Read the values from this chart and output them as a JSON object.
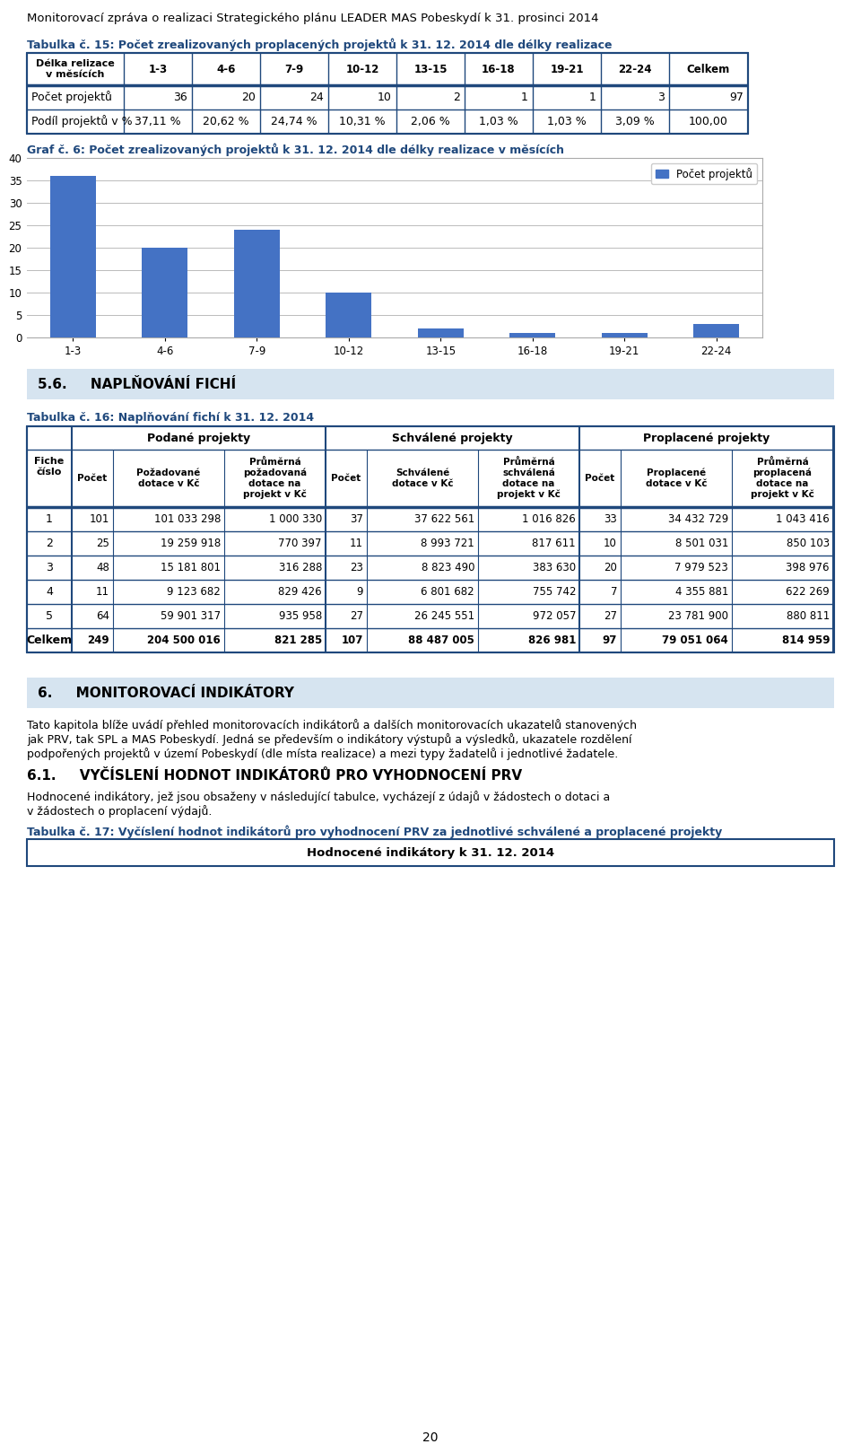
{
  "page_title": "Monitorovací zpráva o realizaci Strategického plánu LEADER MAS Pobeskydí k 31. prosinci 2014",
  "page_number": "20",
  "table15_title": "Tabulka č. 15: Počet zrealizovaných proplacených projektů k 31. 12. 2014 dle délky realizace",
  "table15_col0_header": "Délka relizace\nv měsících",
  "table15_cols": [
    "1-3",
    "4-6",
    "7-9",
    "10-12",
    "13-15",
    "16-18",
    "19-21",
    "22-24",
    "Celkem"
  ],
  "table15_row1_label": "Počet projektů",
  "table15_row1_vals": [
    "36",
    "20",
    "24",
    "10",
    "2",
    "1",
    "1",
    "3",
    "97"
  ],
  "table15_row2_label": "Podíl projektů v %",
  "table15_row2_vals": [
    "37,11 %",
    "20,62 %",
    "24,74 %",
    "10,31 %",
    "2,06 %",
    "1,03 %",
    "1,03 %",
    "3,09 %",
    "100,00"
  ],
  "chart_title": "Graf č. 6: Počet zrealizovaných projektů k 31. 12. 2014 dle délky realizace v měsících",
  "chart_categories": [
    "1-3",
    "4-6",
    "7-9",
    "10-12",
    "13-15",
    "16-18",
    "19-21",
    "22-24"
  ],
  "chart_values": [
    36,
    20,
    24,
    10,
    2,
    1,
    1,
    3
  ],
  "chart_ylim": [
    0,
    40
  ],
  "chart_yticks": [
    0,
    5,
    10,
    15,
    20,
    25,
    30,
    35,
    40
  ],
  "chart_bar_color": "#4472C4",
  "chart_legend_label": "Počet projektů",
  "table16_title": "Tabulka č. 16: Naplňování fichí k 31. 12. 2014",
  "table16_group_headers": [
    "Podané projekty",
    "Schválené projekty",
    "Proplacené projekty"
  ],
  "table16_sub_headers": [
    "Počet",
    "Požadované\ndotace v Kč",
    "Průměrná\npožadovaná\ndotace na\nprojekt v Kč",
    "Počet",
    "Schválené\ndotace v Kč",
    "Průměrná\nschválená\ndotace na\nprojekt v Kč",
    "Počet",
    "Proplacené\ndotace v Kč",
    "Průměrná\nproplacená\ndotace na\nprojekt v Kč"
  ],
  "table16_rows": [
    [
      "1",
      "101",
      "101 033 298",
      "1 000 330",
      "37",
      "37 622 561",
      "1 016 826",
      "33",
      "34 432 729",
      "1 043 416"
    ],
    [
      "2",
      "25",
      "19 259 918",
      "770 397",
      "11",
      "8 993 721",
      "817 611",
      "10",
      "8 501 031",
      "850 103"
    ],
    [
      "3",
      "48",
      "15 181 801",
      "316 288",
      "23",
      "8 823 490",
      "383 630",
      "20",
      "7 979 523",
      "398 976"
    ],
    [
      "4",
      "11",
      "9 123 682",
      "829 426",
      "9",
      "6 801 682",
      "755 742",
      "7",
      "4 355 881",
      "622 269"
    ],
    [
      "5",
      "64",
      "59 901 317",
      "935 958",
      "27",
      "26 245 551",
      "972 057",
      "27",
      "23 781 900",
      "880 811"
    ],
    [
      "Celkem",
      "249",
      "204 500 016",
      "821 285",
      "107",
      "88 487 005",
      "826 981",
      "97",
      "79 051 064",
      "814 959"
    ]
  ],
  "section6_text1": "Tato kapitola blíže uvádí přehled monitorovacích indikátorů a dalších monitorovacích ukazatelů stanovených\njak PRV, tak SPL a MAS Pobeskydí. Jedná se především o indikátory výstupů a výsledků, ukazatele rozdělení\npodpořených projektů v území Pobeskydí (dle místa realizace) a mezi typy žadatelů i jednotlivé žadatele.",
  "section61_text1": "Hodnocené indikátory, jež jsou obsaženy v následující tabulce, vycházejí z údajů v žádostech o dotaci a\nv žádostech o proplacení výdajů.",
  "table17_title": "Tabulka č. 17: Vyčíslení hodnot indikátorů pro vyhodnocení PRV za jednotlivé schválené a proplacené projekty",
  "table17_header": "Hodnocené indikátory k 31. 12. 2014",
  "border_color": "#1F487C",
  "section_bg_color": "#D6E4F0",
  "title_color": "#1F487C",
  "background_color": "#FFFFFF"
}
